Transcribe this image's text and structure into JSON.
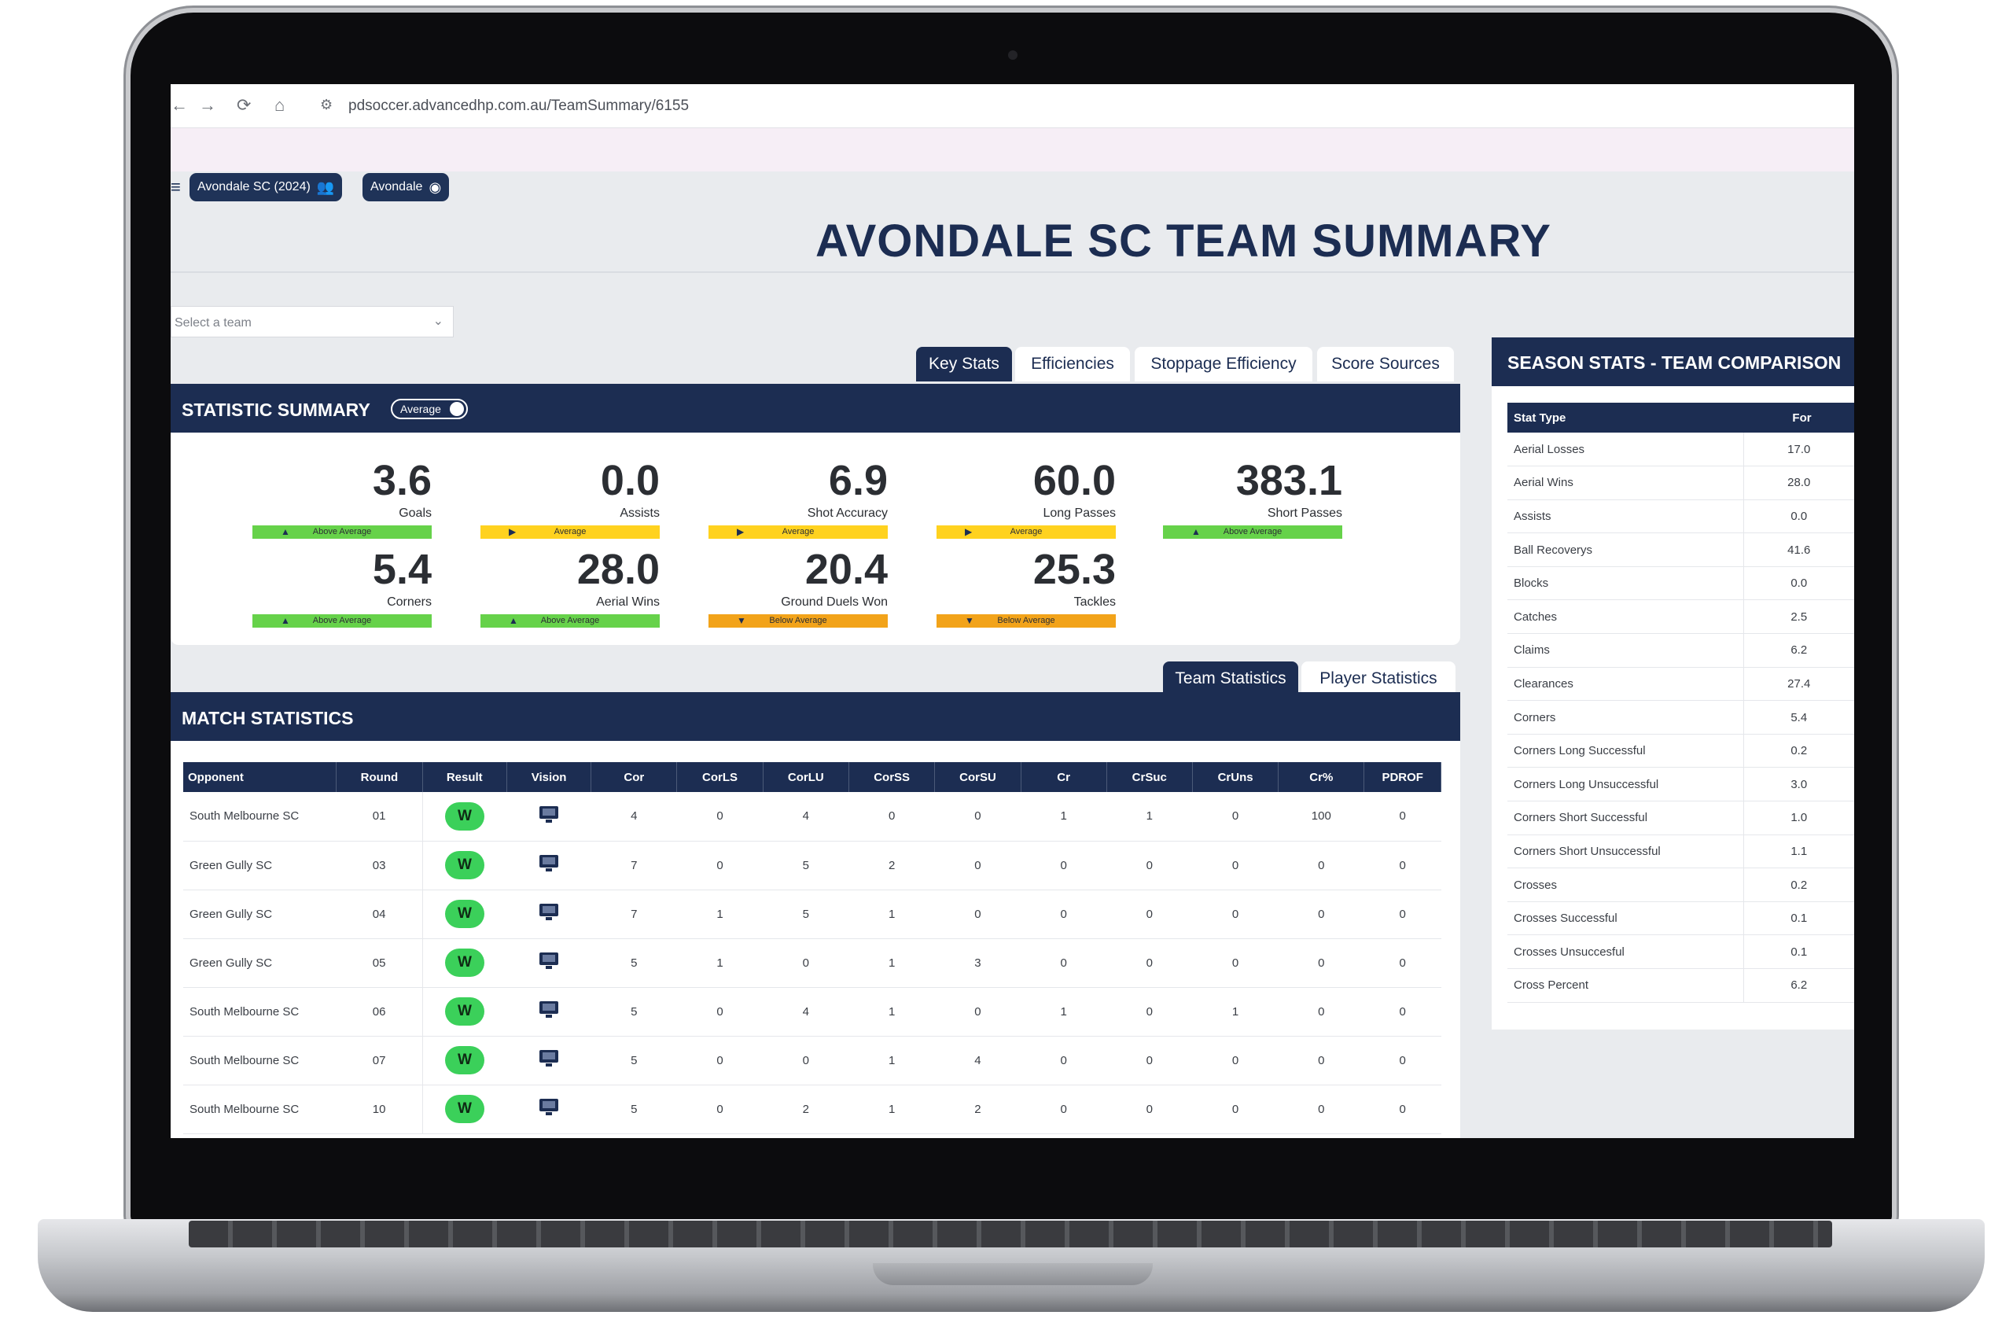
{
  "browser": {
    "url": "pdsoccer.advancedhp.com.au/TeamSummary/6155",
    "back_icon": "←",
    "forward_icon": "→",
    "reload_icon": "⟳",
    "home_icon": "⌂",
    "site_info_icon": "⚙"
  },
  "header": {
    "chips": [
      {
        "label": "Avondale SC (2024)",
        "icon": "users-icon"
      },
      {
        "label": "Avondale",
        "icon": "account-icon"
      }
    ],
    "title": "AVONDALE SC TEAM SUMMARY"
  },
  "team_select": {
    "placeholder": "Select a team",
    "chevron": "⌄"
  },
  "key_tabs": [
    "Key Stats",
    "Efficiencies",
    "Stoppage Efficiency",
    "Score Sources"
  ],
  "statistic_summary": {
    "title": "STATISTIC SUMMARY",
    "toggle_label": "Average",
    "stats": [
      {
        "value": "3.6",
        "label": "Goals",
        "status": "Above Average",
        "level": "above"
      },
      {
        "value": "0.0",
        "label": "Assists",
        "status": "Average",
        "level": "average"
      },
      {
        "value": "6.9",
        "label": "Shot Accuracy",
        "status": "Average",
        "level": "average"
      },
      {
        "value": "60.0",
        "label": "Long Passes",
        "status": "Average",
        "level": "average"
      },
      {
        "value": "383.1",
        "label": "Short Passes",
        "status": "Above Average",
        "level": "above"
      },
      {
        "value": "5.4",
        "label": "Corners",
        "status": "Above Average",
        "level": "above"
      },
      {
        "value": "28.0",
        "label": "Aerial Wins",
        "status": "Above Average",
        "level": "above"
      },
      {
        "value": "20.4",
        "label": "Ground Duels Won",
        "status": "Below Average",
        "level": "below"
      },
      {
        "value": "25.3",
        "label": "Tackles",
        "status": "Below Average",
        "level": "below"
      }
    ]
  },
  "stat_tabs": [
    "Team Statistics",
    "Player Statistics"
  ],
  "match_statistics": {
    "title": "MATCH STATISTICS",
    "columns": [
      "Opponent",
      "Round",
      "Result",
      "Vision",
      "Cor",
      "CorLS",
      "CorLU",
      "CorSS",
      "CorSU",
      "Cr",
      "CrSuc",
      "CrUns",
      "Cr%",
      "PDROF"
    ],
    "rows": [
      [
        "South Melbourne SC",
        "01",
        "W",
        "",
        "4",
        "0",
        "4",
        "0",
        "0",
        "1",
        "1",
        "0",
        "100",
        "0"
      ],
      [
        "Green Gully SC",
        "03",
        "W",
        "",
        "7",
        "0",
        "5",
        "2",
        "0",
        "0",
        "0",
        "0",
        "0",
        "0"
      ],
      [
        "Green Gully SC",
        "04",
        "W",
        "",
        "7",
        "1",
        "5",
        "1",
        "0",
        "0",
        "0",
        "0",
        "0",
        "0"
      ],
      [
        "Green Gully SC",
        "05",
        "W",
        "",
        "5",
        "1",
        "0",
        "1",
        "3",
        "0",
        "0",
        "0",
        "0",
        "0"
      ],
      [
        "South Melbourne SC",
        "06",
        "W",
        "",
        "5",
        "0",
        "4",
        "1",
        "0",
        "1",
        "0",
        "1",
        "0",
        "0"
      ],
      [
        "South Melbourne SC",
        "07",
        "W",
        "",
        "5",
        "0",
        "0",
        "1",
        "4",
        "0",
        "0",
        "0",
        "0",
        "0"
      ],
      [
        "South Melbourne SC",
        "10",
        "W",
        "",
        "5",
        "0",
        "2",
        "1",
        "2",
        "0",
        "0",
        "0",
        "0",
        "0"
      ]
    ]
  },
  "season_stats": {
    "title": "SEASON STATS - TEAM COMPARISON",
    "columns": [
      "Stat Type",
      "For"
    ],
    "rows": [
      [
        "Aerial Losses",
        "17.0"
      ],
      [
        "Aerial Wins",
        "28.0"
      ],
      [
        "Assists",
        "0.0"
      ],
      [
        "Ball Recoverys",
        "41.6"
      ],
      [
        "Blocks",
        "0.0"
      ],
      [
        "Catches",
        "2.5"
      ],
      [
        "Claims",
        "6.2"
      ],
      [
        "Clearances",
        "27.4"
      ],
      [
        "Corners",
        "5.4"
      ],
      [
        "Corners Long Successful",
        "0.2"
      ],
      [
        "Corners Long Unsuccessful",
        "3.0"
      ],
      [
        "Corners Short Successful",
        "1.0"
      ],
      [
        "Corners Short Unsuccessful",
        "1.1"
      ],
      [
        "Crosses",
        "0.2"
      ],
      [
        "Crosses Successful",
        "0.1"
      ],
      [
        "Crosses Unsuccesful",
        "0.1"
      ],
      [
        "Cross Percent",
        "6.2"
      ]
    ]
  },
  "colors": {
    "navy": "#1c2d52",
    "above_average": "#66d24a",
    "average": "#ffd21f",
    "below_average": "#f2a31a",
    "win": "#3bd05a"
  }
}
